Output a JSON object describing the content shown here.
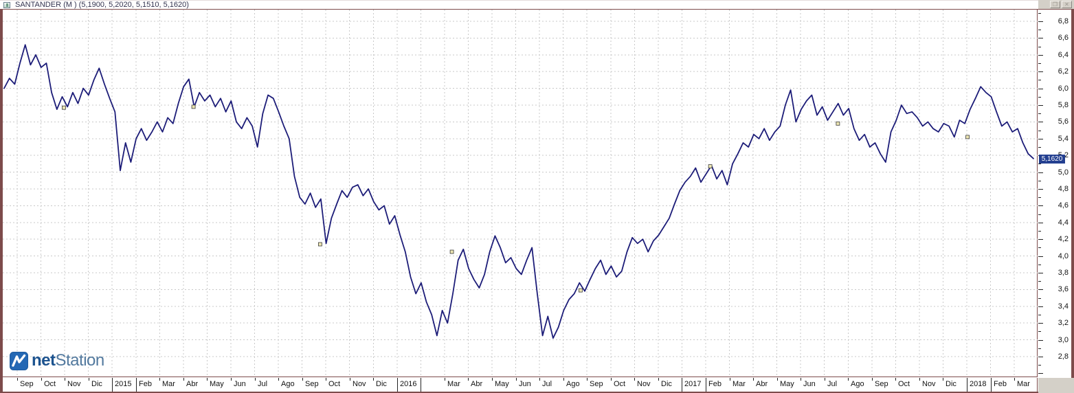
{
  "window": {
    "title": "SANTANDER (M ) (5,1900, 5,2020, 5,1510, 5,1620)",
    "symbol": "SANTANDER",
    "timeframe": "(M )",
    "ohlc_text": "(5,1900, 5,2020, 5,1510, 5,1620)"
  },
  "icons": {
    "window_restore_glyph": "❐",
    "window_close_glyph": "✕"
  },
  "branding": {
    "logo_bold": "net",
    "logo_regular": "Station"
  },
  "colors": {
    "frame_maroon": "#7d4b4b",
    "line_navy": "#1c1c78",
    "grid_gray": "#c8c8c8",
    "price_flag_bg": "#233f90",
    "corner_gray": "#d4d0c8",
    "logo_blue": "#2468b4",
    "marker_fill": "#ece5b2"
  },
  "chart_data": {
    "type": "line",
    "title": "SANTANDER (M )",
    "last_ohlc": {
      "open": "5,1900",
      "high": "5,2020",
      "low": "5,1510",
      "close": "5,1620"
    },
    "last_price": 5.162,
    "last_price_label": "5,1620",
    "grid": true,
    "x_axis": {
      "tick_labels": [
        "Sep",
        "Oct",
        "Nov",
        "Dic",
        "2015",
        "Feb",
        "Mar",
        "Abr",
        "May",
        "Jun",
        "Jul",
        "Ago",
        "Sep",
        "Oct",
        "Nov",
        "Dic",
        "2016",
        "",
        "Mar",
        "Abr",
        "May",
        "Jun",
        "Jul",
        "Ago",
        "Sep",
        "Oct",
        "Nov",
        "Dic",
        "2017",
        "Feb",
        "Mar",
        "Abr",
        "May",
        "Jun",
        "Jul",
        "Ago",
        "Sep",
        "Oct",
        "Nov",
        "Dic",
        "2018",
        "Feb",
        "Mar"
      ],
      "range_note": "Aug 2014 - Mar 2018"
    },
    "y_axis": {
      "tick_labels": [
        "6,8",
        "6,6",
        "6,4",
        "6,2",
        "6,0",
        "5,8",
        "5,6",
        "5,4",
        "5,2",
        "5,0",
        "4,8",
        "4,6",
        "4,4",
        "4,2",
        "4,0",
        "3,8",
        "3,6",
        "3,4",
        "3,2",
        "3,0",
        "2,8"
      ],
      "max_label_value": 6.8,
      "min_label_value": 2.8,
      "step": 0.2,
      "ylim": [
        2.55,
        6.94
      ]
    },
    "series": [
      {
        "name": "SANTANDER",
        "values": [
          6.0,
          6.12,
          6.05,
          6.3,
          6.52,
          6.28,
          6.4,
          6.25,
          6.3,
          5.95,
          5.75,
          5.9,
          5.78,
          5.95,
          5.82,
          6.0,
          5.92,
          6.1,
          6.24,
          6.05,
          5.88,
          5.72,
          5.02,
          5.35,
          5.12,
          5.4,
          5.52,
          5.38,
          5.48,
          5.6,
          5.48,
          5.65,
          5.58,
          5.82,
          6.02,
          6.11,
          5.78,
          5.95,
          5.85,
          5.92,
          5.78,
          5.88,
          5.72,
          5.85,
          5.6,
          5.52,
          5.65,
          5.55,
          5.3,
          5.7,
          5.92,
          5.88,
          5.72,
          5.55,
          5.4,
          4.95,
          4.7,
          4.62,
          4.75,
          4.58,
          4.68,
          4.15,
          4.45,
          4.62,
          4.78,
          4.7,
          4.82,
          4.85,
          4.72,
          4.8,
          4.65,
          4.55,
          4.6,
          4.38,
          4.48,
          4.25,
          4.05,
          3.75,
          3.55,
          3.68,
          3.45,
          3.3,
          3.05,
          3.35,
          3.2,
          3.55,
          3.95,
          4.08,
          3.85,
          3.72,
          3.62,
          3.78,
          4.05,
          4.24,
          4.1,
          3.92,
          3.98,
          3.85,
          3.78,
          3.95,
          4.1,
          3.55,
          3.05,
          3.28,
          3.02,
          3.15,
          3.35,
          3.48,
          3.55,
          3.68,
          3.58,
          3.72,
          3.85,
          3.95,
          3.78,
          3.88,
          3.75,
          3.82,
          4.05,
          4.22,
          4.15,
          4.2,
          4.05,
          4.18,
          4.25,
          4.35,
          4.45,
          4.62,
          4.78,
          4.88,
          4.95,
          5.05,
          4.88,
          4.98,
          5.08,
          4.92,
          5.02,
          4.85,
          5.1,
          5.22,
          5.35,
          5.3,
          5.45,
          5.4,
          5.52,
          5.38,
          5.48,
          5.55,
          5.8,
          5.98,
          5.6,
          5.75,
          5.85,
          5.92,
          5.68,
          5.78,
          5.62,
          5.72,
          5.82,
          5.68,
          5.76,
          5.52,
          5.38,
          5.45,
          5.3,
          5.35,
          5.22,
          5.12,
          5.48,
          5.62,
          5.8,
          5.7,
          5.72,
          5.65,
          5.55,
          5.6,
          5.52,
          5.48,
          5.58,
          5.55,
          5.42,
          5.62,
          5.58,
          5.75,
          5.88,
          6.02,
          5.95,
          5.9,
          5.72,
          5.55,
          5.6,
          5.48,
          5.52,
          5.35,
          5.22,
          5.162
        ]
      }
    ],
    "event_markers": [
      {
        "x_frac": 0.058,
        "price": 5.77
      },
      {
        "x_frac": 0.184,
        "price": 5.78
      },
      {
        "x_frac": 0.307,
        "price": 4.14
      },
      {
        "x_frac": 0.435,
        "price": 4.05
      },
      {
        "x_frac": 0.56,
        "price": 3.59
      },
      {
        "x_frac": 0.686,
        "price": 5.07
      },
      {
        "x_frac": 0.81,
        "price": 5.58
      },
      {
        "x_frac": 0.936,
        "price": 5.42
      }
    ]
  }
}
